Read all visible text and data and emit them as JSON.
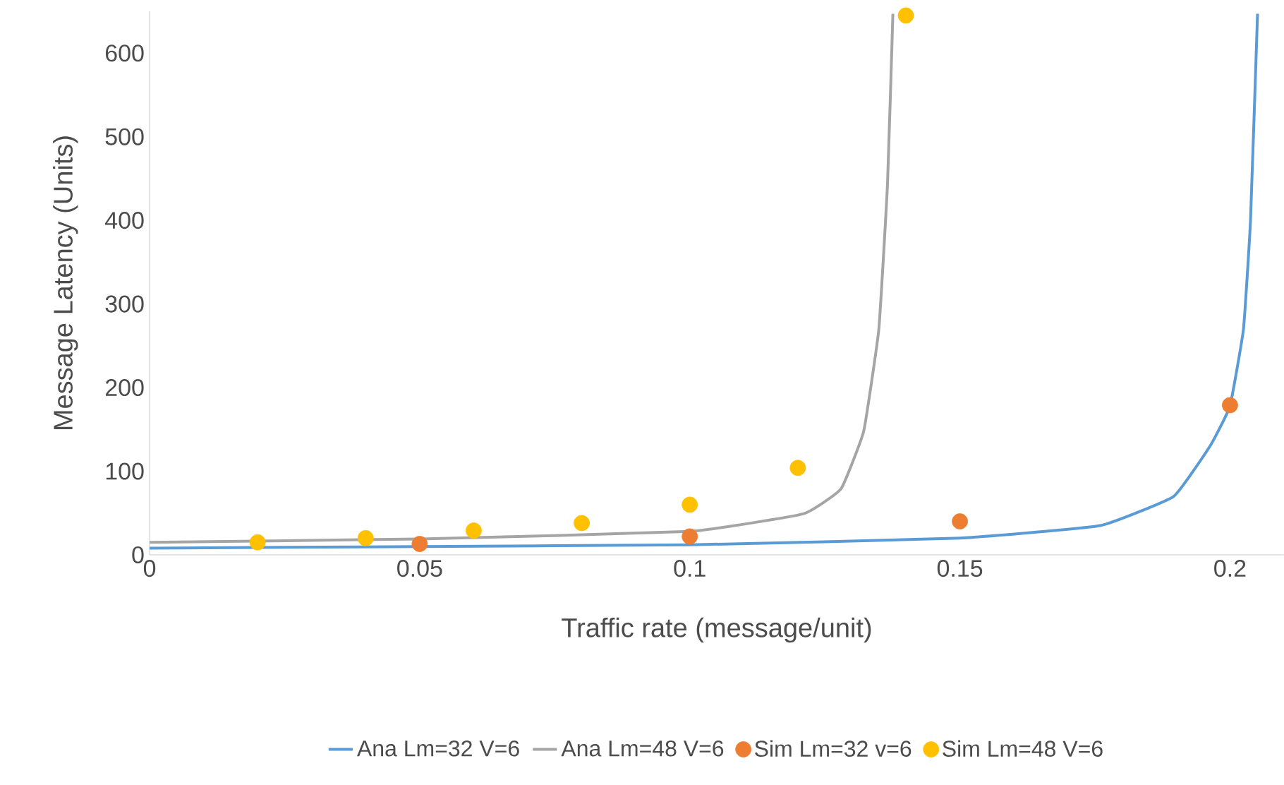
{
  "chart_data": {
    "type": "line",
    "xlabel": "Traffic rate (message/unit)",
    "ylabel": "Message Latency (Units)",
    "xlim": [
      0,
      0.21
    ],
    "xticks": [
      0,
      0.05,
      0.1,
      0.15,
      0.2
    ],
    "ylim": [
      0,
      650
    ],
    "yticks": [
      0,
      100,
      200,
      300,
      400,
      500,
      600
    ],
    "grid": false,
    "legend": "bottom",
    "series": [
      {
        "name": "Ana Lm=32 V=6",
        "marker": "none",
        "color": "#5b9bd5",
        "x": [
          0,
          0.05,
          0.1,
          0.15,
          0.176,
          0.1896,
          0.1964,
          0.2,
          0.2025,
          0.2038,
          0.2051
        ],
        "values": [
          8,
          10,
          12,
          20,
          35,
          70,
          131,
          178,
          270,
          400,
          647
        ]
      },
      {
        "name": "Ana Lm=48 V=6",
        "marker": "none",
        "color": "#a5a5a5",
        "x": [
          0,
          0.05,
          0.1,
          0.121,
          0.128,
          0.1322,
          0.135,
          0.1366,
          0.1376
        ],
        "values": [
          15,
          19,
          28,
          49,
          79,
          148,
          270,
          443,
          647
        ]
      },
      {
        "name": "Sim Lm=32 v=6",
        "type": "scatter",
        "marker": "circle",
        "color": "#ed7d31",
        "x": [
          0.05,
          0.1,
          0.15,
          0.2
        ],
        "values": [
          13,
          22,
          40,
          179
        ]
      },
      {
        "name": "Sim Lm=48 V=6",
        "type": "scatter",
        "marker": "circle",
        "color": "#ffc000",
        "x": [
          0.02,
          0.04,
          0.06,
          0.08,
          0.1,
          0.12,
          0.14
        ],
        "values": [
          15,
          20,
          29,
          38,
          60,
          104,
          645
        ]
      }
    ]
  }
}
